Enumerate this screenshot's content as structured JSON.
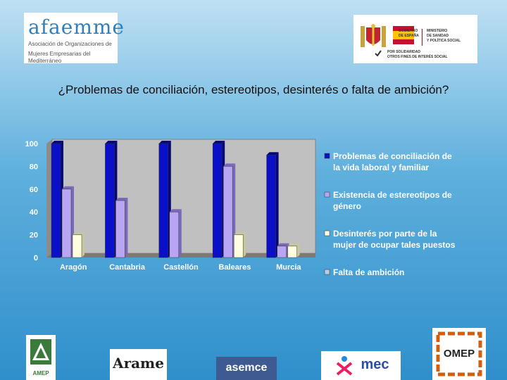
{
  "header": {
    "afaemme_brand": "afaemme",
    "afaemme_sub_line1": "Asociación de Organizaciones de",
    "afaemme_sub_line2": "Mujeres Empresarias del Mediterráneo",
    "gov_line1": "GOBIERNO",
    "gov_line2": "DE ESPAÑA",
    "min_line1": "MINISTERIO",
    "min_line2": "DE SANIDAD",
    "min_line3": "Y POLÍTICA SOCIAL",
    "x_line1": "POR SOLIDARIDAD",
    "x_line2": "OTROS FINES DE INTERÉS SOCIAL"
  },
  "title": "¿Problemas de conciliación, estereotipos, desinterés o falta de ambición?",
  "chart_data": {
    "type": "bar",
    "categories": [
      "Aragón",
      "Cantabria",
      "Castellón",
      "Baleares",
      "Murcia"
    ],
    "series": [
      {
        "name_lines": [
          "Problemas de conciliación de",
          "la vida laboral y familiar"
        ],
        "values": [
          100,
          100,
          100,
          100,
          90
        ]
      },
      {
        "name_lines": [
          "Existencia de estereotipos de",
          "género"
        ],
        "values": [
          60,
          50,
          40,
          80,
          10
        ]
      },
      {
        "name_lines": [
          "Desinterés por parte de la",
          "mujer de ocupar tales puestos"
        ],
        "values": [
          20,
          0,
          0,
          20,
          10
        ]
      },
      {
        "name_lines": [
          "Falta de ambición"
        ],
        "values": [
          0,
          0,
          0,
          0,
          0
        ]
      }
    ],
    "ylim": [
      0,
      100
    ],
    "yticks": [
      0,
      20,
      40,
      60,
      80,
      100
    ],
    "grid": false,
    "legend": "right",
    "colors": [
      "#0a10c8",
      "#b9a6f2",
      "#fffde0",
      "#b8cce8"
    ]
  },
  "footer": {
    "amep": "AMEP",
    "arame": "Arame",
    "asemce": "asemce",
    "mec": "mec",
    "omep": "OMEP"
  }
}
